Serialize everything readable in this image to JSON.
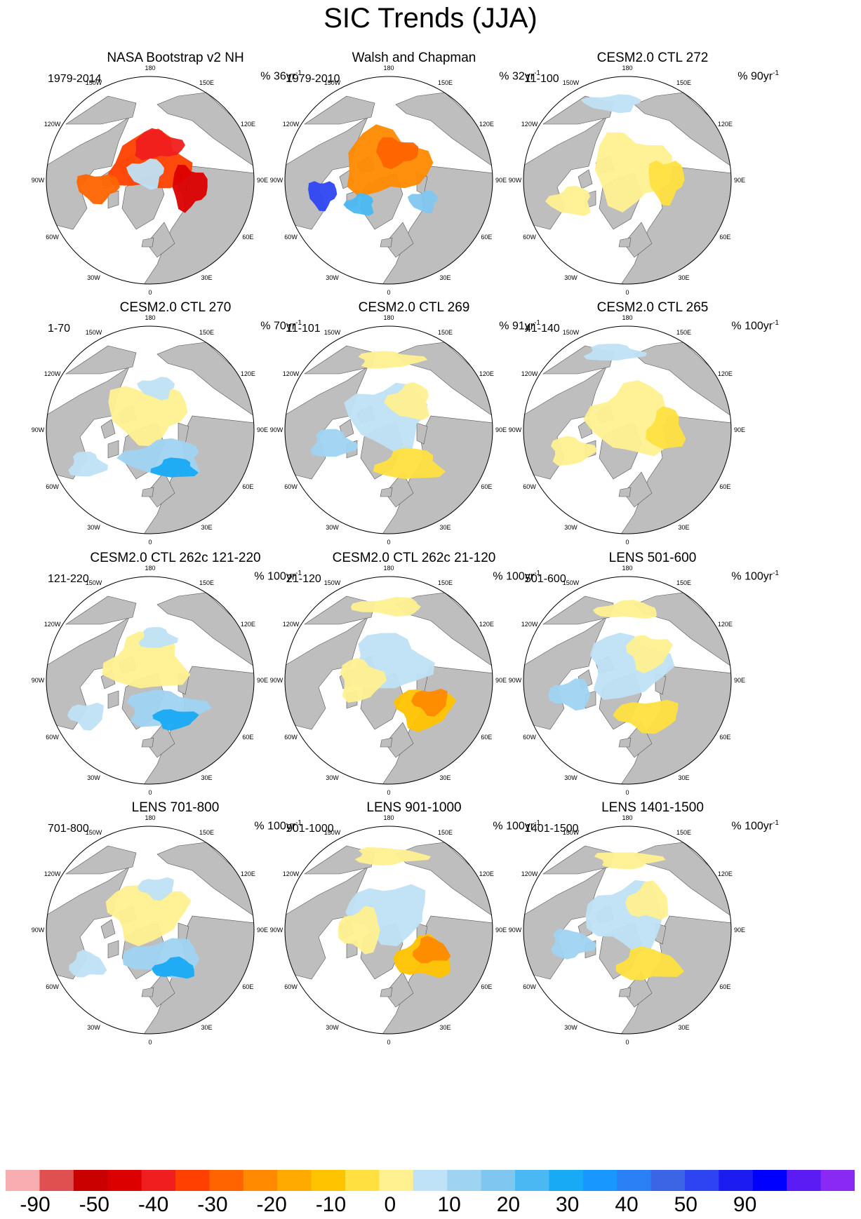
{
  "title": "SIC Trends (JJA)",
  "lon_labels": [
    "180",
    "150E",
    "120E",
    "90E",
    "60E",
    "30E",
    "0",
    "30W",
    "60W",
    "90W",
    "120W",
    "150W"
  ],
  "panels": [
    {
      "title": "NASA Bootstrap v2 NH",
      "period": "1979-2014",
      "unit_value": "36",
      "style": "strong_neg"
    },
    {
      "title": "Walsh and Chapman",
      "period": "1979-2010",
      "unit_value": "32",
      "style": "mixed_obs"
    },
    {
      "title": "CESM2.0 CTL 272",
      "period": "11-100",
      "unit_value": "90",
      "style": "weak_neg"
    },
    {
      "title": "CESM2.0 CTL 270",
      "period": "1-70",
      "unit_value": "70",
      "style": "mixed_pos"
    },
    {
      "title": "CESM2.0 CTL 269",
      "period": "11-101",
      "unit_value": "91",
      "style": "mixed"
    },
    {
      "title": "CESM2.0 CTL 265",
      "period": "41-140",
      "unit_value": "100",
      "style": "weak_neg"
    },
    {
      "title": "CESM2.0 CTL 262c 121-220",
      "period": "121-220",
      "unit_value": "100",
      "style": "mixed_pos"
    },
    {
      "title": "CESM2.0 CTL 262c 21-120",
      "period": "21-120",
      "unit_value": "100",
      "style": "neg_atl"
    },
    {
      "title": "LENS 501-600",
      "period": "501-600",
      "unit_value": "100",
      "style": "mixed"
    },
    {
      "title": "LENS 701-800",
      "period": "701-800",
      "unit_value": "100",
      "style": "mixed_pos"
    },
    {
      "title": "LENS 901-1000",
      "period": "901-1000",
      "unit_value": "100",
      "style": "neg_atl"
    },
    {
      "title": "LENS 1401-1500",
      "period": "1401-1500",
      "unit_value": "100",
      "style": "mixed"
    }
  ],
  "unit_prefix": "% ",
  "unit_suffix": "yr",
  "unit_exponent": "-1",
  "colorbar": {
    "labels": [
      "-90",
      "-50",
      "-40",
      "-30",
      "-20",
      "-10",
      "0",
      "10",
      "20",
      "30",
      "40",
      "50",
      "90"
    ],
    "colors": [
      "#f8aeb0",
      "#e05050",
      "#c80000",
      "#dc0000",
      "#f01e1e",
      "#ff4000",
      "#ff6400",
      "#ff8a00",
      "#ffaa00",
      "#ffc300",
      "#ffe040",
      "#fff090",
      "#bfe2f6",
      "#9fd3f2",
      "#7fc6f0",
      "#4ab8f2",
      "#18aaf4",
      "#1898ff",
      "#2b80f6",
      "#3a66e6",
      "#2e44f2",
      "#1c1cf0",
      "#0000ff",
      "#5a1cf2",
      "#8a28f4"
    ],
    "land": "#bebebe",
    "ocean": "#ffffff"
  }
}
